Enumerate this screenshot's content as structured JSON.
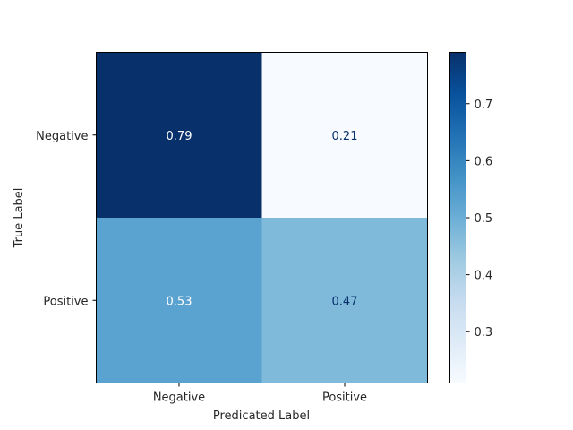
{
  "chart_data": {
    "type": "heatmap",
    "title": "",
    "xlabel": "Predicated Label",
    "ylabel": "True Label",
    "x_categories": [
      "Negative",
      "Positive"
    ],
    "y_categories": [
      "Negative",
      "Positive"
    ],
    "values": [
      [
        0.79,
        0.21
      ],
      [
        0.53,
        0.47
      ]
    ],
    "cell_labels": [
      [
        "0.79",
        "0.21"
      ],
      [
        "0.53",
        "0.47"
      ]
    ],
    "colormap": "Blues",
    "colorbar": {
      "range": [
        0.21,
        0.79
      ],
      "ticks": [
        0.3,
        0.4,
        0.5,
        0.6,
        0.7
      ],
      "tick_labels": [
        "0.3",
        "0.4",
        "0.5",
        "0.6",
        "0.7"
      ]
    },
    "colors": {
      "cell_high": "#08306b",
      "cell_low": "#f7fbff",
      "text_on_dark": "#ffffff",
      "text_on_light": "#08306b"
    }
  }
}
